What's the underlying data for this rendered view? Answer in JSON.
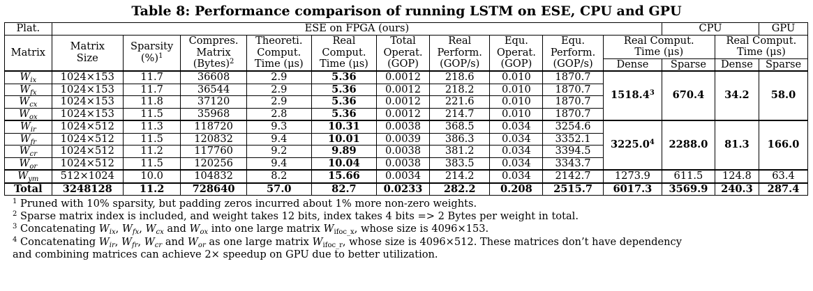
{
  "caption": "Table 8: Performance comparison of running LSTM on ESE, CPU and GPU",
  "header": {
    "plat": "Plat.",
    "ese_group": "ESE on FPGA (ours)",
    "cpu_group": "CPU",
    "gpu_group": "GPU",
    "matrix": "Matrix",
    "matrix_size": [
      "Matrix",
      "Size"
    ],
    "sparsity": [
      "Sparsity",
      "(%)",
      "1"
    ],
    "compres": [
      "Compres.",
      "Matrix",
      "(Bytes)",
      "2"
    ],
    "theoreti": [
      "Theoreti.",
      "Comput.",
      "Time (μs)"
    ],
    "real_comput": [
      "Real",
      "Comput.",
      "Time (μs)"
    ],
    "total_operat": [
      "Total",
      "Operat.",
      "(GOP)"
    ],
    "real_perform": [
      "Real",
      "Perform.",
      "(GOP/s)"
    ],
    "equ_operat": [
      "Equ.",
      "Operat.",
      "(GOP)"
    ],
    "equ_perform": [
      "Equ.",
      "Perform.",
      "(GOP/s)"
    ],
    "cpu_time": [
      "Real Comput.",
      "Time (μs)"
    ],
    "gpu_time": [
      "Real Comput.",
      "Time (μs)"
    ],
    "dense": "Dense",
    "sparse": "Sparse"
  },
  "rows": [
    {
      "m": "W",
      "s": "ix",
      "size": "1024×153",
      "sp": "11.7",
      "cm": "36608",
      "tt": "2.9",
      "rt": "5.36",
      "to": "0.0012",
      "rp": "218.6",
      "eo": "0.010",
      "ep": "1870.7"
    },
    {
      "m": "W",
      "s": "fx",
      "size": "1024×153",
      "sp": "11.7",
      "cm": "36544",
      "tt": "2.9",
      "rt": "5.36",
      "to": "0.0012",
      "rp": "218.2",
      "eo": "0.010",
      "ep": "1870.7"
    },
    {
      "m": "W",
      "s": "cx",
      "size": "1024×153",
      "sp": "11.8",
      "cm": "37120",
      "tt": "2.9",
      "rt": "5.36",
      "to": "0.0012",
      "rp": "221.6",
      "eo": "0.010",
      "ep": "1870.7"
    },
    {
      "m": "W",
      "s": "ox",
      "size": "1024×153",
      "sp": "11.5",
      "cm": "35968",
      "tt": "2.8",
      "rt": "5.36",
      "to": "0.0012",
      "rp": "214.7",
      "eo": "0.010",
      "ep": "1870.7"
    },
    {
      "m": "W",
      "s": "ir",
      "size": "1024×512",
      "sp": "11.3",
      "cm": "118720",
      "tt": "9.3",
      "rt": "10.31",
      "to": "0.0038",
      "rp": "368.5",
      "eo": "0.034",
      "ep": "3254.6"
    },
    {
      "m": "W",
      "s": "fr",
      "size": "1024×512",
      "sp": "11.5",
      "cm": "120832",
      "tt": "9.4",
      "rt": "10.01",
      "to": "0.0039",
      "rp": "386.3",
      "eo": "0.034",
      "ep": "3352.1"
    },
    {
      "m": "W",
      "s": "cr",
      "size": "1024×512",
      "sp": "11.2",
      "cm": "117760",
      "tt": "9.2",
      "rt": "9.89",
      "to": "0.0038",
      "rp": "381.2",
      "eo": "0.034",
      "ep": "3394.5"
    },
    {
      "m": "W",
      "s": "or",
      "size": "1024×512",
      "sp": "11.5",
      "cm": "120256",
      "tt": "9.4",
      "rt": "10.04",
      "to": "0.0038",
      "rp": "383.5",
      "eo": "0.034",
      "ep": "3343.7"
    },
    {
      "m": "W",
      "s": "ym",
      "size": "512×1024",
      "sp": "10.0",
      "cm": "104832",
      "tt": "8.2",
      "rt": "15.66",
      "to": "0.0034",
      "rp": "214.2",
      "eo": "0.034",
      "ep": "2142.7",
      "cd": "1273.9",
      "cs": "611.5",
      "gd": "124.8",
      "gs": "63.4"
    }
  ],
  "group1": {
    "cd": "1518.4",
    "cd_sup": "3",
    "cs": "670.4",
    "gd": "34.2",
    "gs": "58.0"
  },
  "group2": {
    "cd": "3225.0",
    "cd_sup": "4",
    "cs": "2288.0",
    "gd": "81.3",
    "gs": "166.0"
  },
  "total": {
    "label": "Total",
    "size": "3248128",
    "sp": "11.2",
    "cm": "728640",
    "tt": "57.0",
    "rt": "82.7",
    "to": "0.0233",
    "rp": "282.2",
    "eo": "0.208",
    "ep": "2515.7",
    "cd": "6017.3",
    "cs": "3569.9",
    "gd": "240.3",
    "gs": "287.4"
  },
  "notes": {
    "n1": {
      "mark": "1",
      "text": "Pruned with 10% sparsity, but padding zeros incurred about 1% more non-zero weights."
    },
    "n2": {
      "mark": "2",
      "text": "Sparse matrix index is included, and weight takes 12 bits, index takes 4 bits => 2 Bytes per weight in total."
    },
    "n3": {
      "mark": "3",
      "t1": "Concatenating ",
      "t2": ", ",
      "t3": ", ",
      "t4": " and ",
      "t5": " into one large matrix ",
      "big": "ifoc_x",
      "t6": ", whose size is 4096×153."
    },
    "n4": {
      "mark": "4",
      "t1": "Concatenating ",
      "t2": ", ",
      "t3": ", ",
      "t4": " and ",
      "t5": " as one large matrix ",
      "big": "ifoc_r",
      "t6": ", whose size is 4096×512.  These matrices don’t have dependency",
      "line2": "and combining matrices can achieve 2× speedup on GPU due to better utilization."
    },
    "w": "W",
    "subs3": [
      "ix",
      "fx",
      "cx",
      "ox"
    ],
    "subs4": [
      "ir",
      "fr",
      "cr",
      "or"
    ]
  }
}
